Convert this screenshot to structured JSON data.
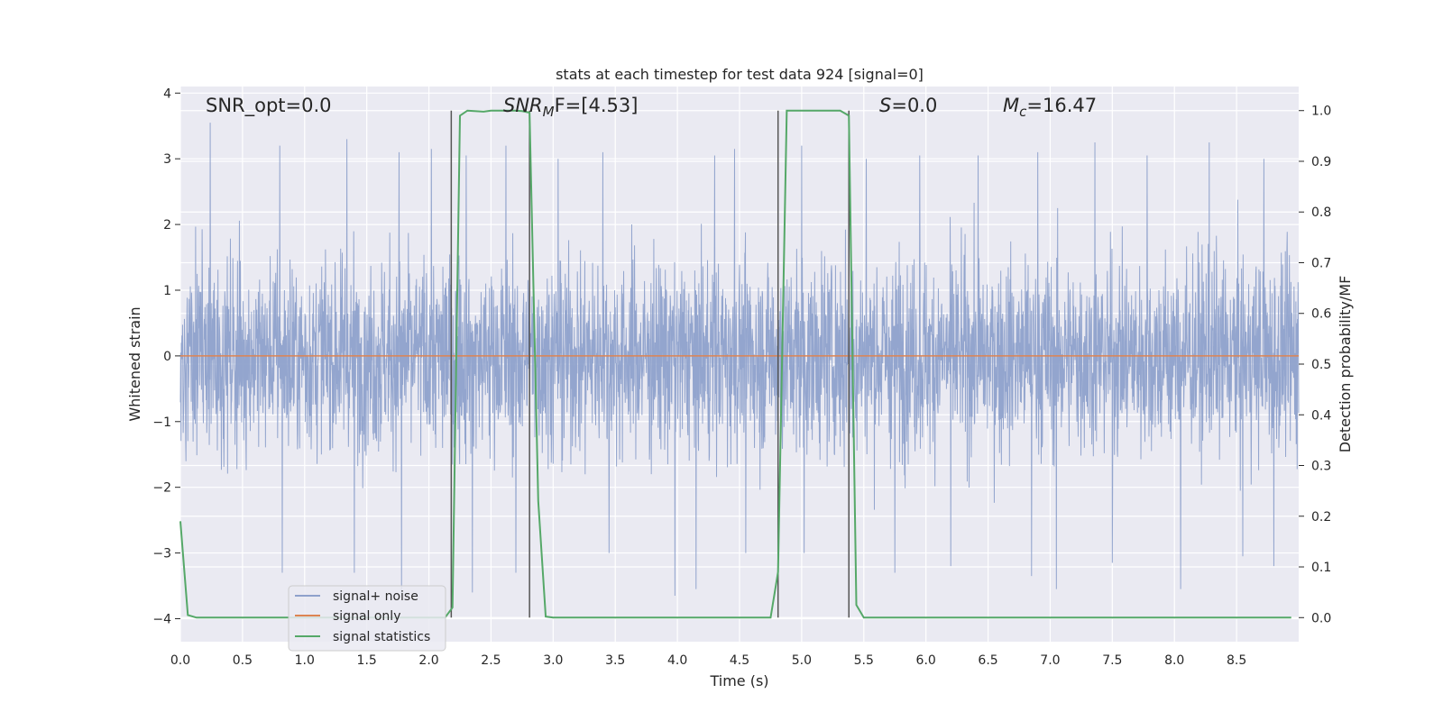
{
  "chart_data": {
    "type": "line",
    "title": "stats at each timestep for test data 924 [signal=0]",
    "xlabel": "Time (s)",
    "ylabel": "Whitened strain",
    "y2label": "Detection probability/MF",
    "xlim": [
      0.0,
      9.0
    ],
    "ylim": [
      -4.35,
      4.1
    ],
    "y2lim": [
      -0.0475,
      1.0475
    ],
    "xticks": [
      "0.0",
      "0.5",
      "1.0",
      "1.5",
      "2.0",
      "2.5",
      "3.0",
      "3.5",
      "4.0",
      "4.5",
      "5.0",
      "5.5",
      "6.0",
      "6.5",
      "7.0",
      "7.5",
      "8.0",
      "8.5"
    ],
    "yticks": [
      "4",
      "3",
      "2",
      "1",
      "0",
      "−1",
      "−2",
      "−3",
      "−4"
    ],
    "y2ticks": [
      "1.0",
      "0.9",
      "0.8",
      "0.7",
      "0.6",
      "0.5",
      "0.4",
      "0.3",
      "0.2",
      "0.1",
      "0.0"
    ],
    "grid": true,
    "legend_position": "lower-left",
    "annotations": {
      "snr_opt": "SNR_opt=0.0",
      "snr_mf_base": "SNR",
      "snr_mf_sub": "M",
      "snr_mf_rest": "F=[4.53]",
      "s_var": "S",
      "s_rest": "=0.0",
      "mc_base": "M",
      "mc_sub": "c",
      "mc_rest": "=16.47"
    },
    "vertical_lines_x": [
      2.18,
      2.81,
      4.81,
      5.38
    ],
    "series": [
      {
        "name": "signal+ noise",
        "color": "#8ea1cb",
        "axis": "left",
        "style": "noise band, amplitude ~1.5 with spikes to about ±3.5",
        "sample_peaks_x": [
          0.24,
          0.8,
          1.34,
          1.76,
          2.02,
          2.3,
          2.62,
          3.04,
          3.4,
          3.98,
          4.3,
          4.46,
          5.0,
          5.52,
          5.95,
          6.42,
          6.9,
          7.36,
          7.78,
          8.28,
          8.72
        ],
        "sample_peaks_y": [
          3.55,
          3.2,
          3.3,
          3.1,
          3.15,
          3.05,
          3.2,
          3.0,
          3.1,
          3.2,
          3.05,
          3.15,
          3.2,
          3.0,
          3.05,
          3.05,
          3.1,
          3.25,
          3.05,
          3.25,
          3.0
        ],
        "sample_troughs_x": [
          0.82,
          1.4,
          1.78,
          2.35,
          2.7,
          3.45,
          3.98,
          4.15,
          4.55,
          5.02,
          5.75,
          6.2,
          6.85,
          7.05,
          7.5,
          8.05,
          8.55,
          8.8
        ],
        "sample_troughs_y": [
          -3.3,
          -3.3,
          -3.65,
          -3.6,
          -3.3,
          -3.0,
          -3.65,
          -3.55,
          -3.0,
          -3.0,
          -3.3,
          -3.2,
          -3.35,
          -3.55,
          -3.15,
          -3.55,
          -3.05,
          -3.2
        ]
      },
      {
        "name": "signal only",
        "color": "#dd8452",
        "axis": "left",
        "x": [
          0.0,
          9.0
        ],
        "y": [
          0.0,
          0.0
        ]
      },
      {
        "name": "signal statistics",
        "color": "#55a868",
        "axis": "right",
        "x": [
          0.0,
          0.06,
          0.13,
          2.13,
          2.19,
          2.25,
          2.31,
          2.44,
          2.5,
          2.69,
          2.75,
          2.81,
          2.88,
          2.94,
          3.0,
          4.75,
          4.81,
          4.88,
          4.94,
          5.0,
          5.31,
          5.38,
          5.44,
          5.5,
          5.56,
          8.94
        ],
        "y": [
          0.19,
          0.005,
          0.0,
          0.0,
          0.02,
          0.99,
          1.0,
          0.998,
          1.0,
          1.0,
          0.999,
          0.996,
          0.23,
          0.002,
          0.0,
          0.0,
          0.09,
          1.0,
          1.0,
          1.0,
          1.0,
          0.99,
          0.025,
          0.0,
          0.0,
          0.0
        ]
      }
    ]
  }
}
